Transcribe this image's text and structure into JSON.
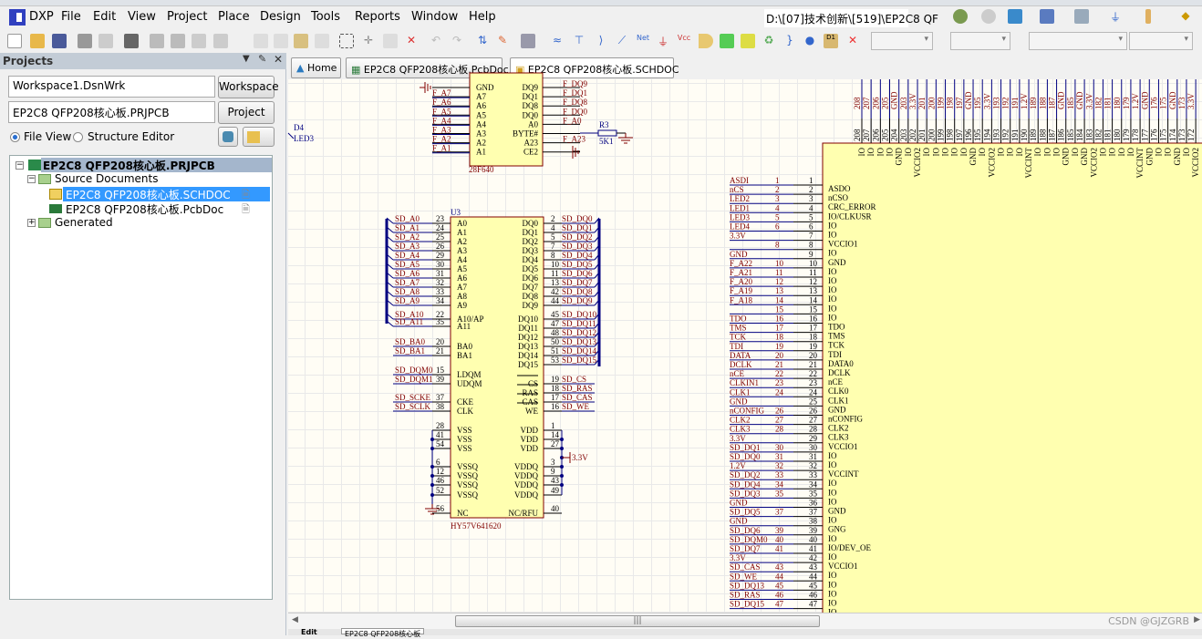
{
  "app": {
    "logo_text": "DXP",
    "path": "D:\\[07]技术创新\\[519]\\EP2C8 QF"
  },
  "menu": [
    "File",
    "Edit",
    "View",
    "Project",
    "Place",
    "Design",
    "Tools",
    "Reports",
    "Window",
    "Help"
  ],
  "projects_panel": {
    "title": "Projects",
    "workspace_value": "Workspace1.DsnWrk",
    "workspace_button": "Workspace",
    "project_value": "EP2C8 QFP208核心板.PRJPCB",
    "project_button": "Project",
    "view_options": [
      {
        "label": "File View",
        "selected": true
      },
      {
        "label": "Structure Editor",
        "selected": false
      }
    ],
    "tree": {
      "project": "EP2C8 QFP208核心板.PRJPCB",
      "source_folder": "Source Documents",
      "documents": [
        {
          "name": "EP2C8 QFP208核心板.SCHDOC",
          "selected": true
        },
        {
          "name": "EP2C8 QFP208核心板.PcbDoc",
          "selected": false
        }
      ],
      "generated_folder": "Generated"
    }
  },
  "tabs": [
    "Home",
    "EP2C8 QFP208核心板.PcbDoc",
    "EP2C8 QFP208核心板.SCHDOC"
  ],
  "watermark": "CSDN @GJZGRB",
  "bottom_tabs": [
    "Edit",
    "EP2C8 QFP208核心板"
  ],
  "colors": {
    "wire": "#000080",
    "net_label": "#800000",
    "component_fill": "#ffffb0",
    "component_border": "#800000",
    "selection": "#3399ff"
  },
  "schematic": {
    "d4": {
      "designator": "D4",
      "comment": "LED3"
    },
    "r3": {
      "designator": "R3",
      "value": "5K1"
    },
    "u2": {
      "comment": "28F640",
      "left": [
        [
          "GND",
          ""
        ],
        [
          "A7",
          "F_A7"
        ],
        [
          "A6",
          "F_A6"
        ],
        [
          "A5",
          "F_A5"
        ],
        [
          "A4",
          "F_A4"
        ],
        [
          "A3",
          "F_A3"
        ],
        [
          "A2",
          "F_A2"
        ],
        [
          "A1",
          "F_A1"
        ]
      ],
      "right": [
        [
          "DQ9",
          "F_DQ9"
        ],
        [
          "DQ1",
          "F_DQ1"
        ],
        [
          "DQ8",
          "F_DQ8"
        ],
        [
          "DQ0",
          "F_DQ0"
        ],
        [
          "A0",
          "F_A0"
        ],
        [
          "BYTE#",
          ""
        ],
        [
          "A23",
          "F_A23"
        ],
        [
          "CE2",
          ""
        ]
      ]
    },
    "u3": {
      "designator": "U3",
      "comment": "HY57V641620",
      "power_net": "3.3V",
      "left": [
        [
          "A0",
          "23",
          "SD_A0"
        ],
        [
          "A1",
          "24",
          "SD_A1"
        ],
        [
          "A2",
          "25",
          "SD_A2"
        ],
        [
          "A3",
          "26",
          "SD_A3"
        ],
        [
          "A4",
          "29",
          "SD_A4"
        ],
        [
          "A5",
          "30",
          "SD_A5"
        ],
        [
          "A6",
          "31",
          "SD_A6"
        ],
        [
          "A7",
          "32",
          "SD_A7"
        ],
        [
          "A8",
          "33",
          "SD_A8"
        ],
        [
          "A9",
          "34",
          "SD_A9"
        ],
        [
          "A10/AP",
          "22",
          "SD_A10"
        ],
        [
          "A11",
          "35",
          "SD_A11"
        ],
        [
          "BA0",
          "20",
          "SD_BA0"
        ],
        [
          "BA1",
          "21",
          "SD_BA1"
        ],
        [
          "LDQM",
          "15",
          "SD_DQM0"
        ],
        [
          "UDQM",
          "39",
          "SD_DQM1"
        ],
        [
          "CKE",
          "37",
          "SD_SCKE"
        ],
        [
          "CLK",
          "38",
          "SD_SCLK"
        ],
        [
          "VSS",
          "28",
          ""
        ],
        [
          "VSS",
          "41",
          ""
        ],
        [
          "VSS",
          "54",
          ""
        ],
        [
          "VSSQ",
          "6",
          ""
        ],
        [
          "VSSQ",
          "12",
          ""
        ],
        [
          "VSSQ",
          "46",
          ""
        ],
        [
          "VSSQ",
          "52",
          ""
        ],
        [
          "NC",
          "56",
          ""
        ]
      ],
      "right": [
        [
          "DQ0",
          "2",
          "SD_DQ0"
        ],
        [
          "DQ1",
          "4",
          "SD_DQ1"
        ],
        [
          "DQ2",
          "5",
          "SD_DQ2"
        ],
        [
          "DQ3",
          "7",
          "SD_DQ3"
        ],
        [
          "DQ4",
          "8",
          "SD_DQ4"
        ],
        [
          "DQ5",
          "10",
          "SD_DQ5"
        ],
        [
          "DQ6",
          "11",
          "SD_DQ6"
        ],
        [
          "DQ7",
          "13",
          "SD_DQ7"
        ],
        [
          "DQ8",
          "42",
          "SD_DQ8"
        ],
        [
          "DQ9",
          "44",
          "SD_DQ9"
        ],
        [
          "DQ10",
          "45",
          "SD_DQ10"
        ],
        [
          "DQ11",
          "47",
          "SD_DQ11"
        ],
        [
          "DQ12",
          "48",
          "SD_DQ12"
        ],
        [
          "DQ13",
          "50",
          "SD_DQ13"
        ],
        [
          "DQ14",
          "51",
          "SD_DQ14"
        ],
        [
          "DQ15",
          "53",
          "SD_DQ15"
        ],
        [
          "CS",
          "19",
          "SD_CS"
        ],
        [
          "RAS",
          "18",
          "SD_RAS"
        ],
        [
          "CAS",
          "17",
          "SD_CAS"
        ],
        [
          "WE",
          "16",
          "SD_WE"
        ],
        [
          "VDD",
          "1",
          ""
        ],
        [
          "VDD",
          "14",
          ""
        ],
        [
          "VDD",
          "27",
          ""
        ],
        [
          "VDDQ",
          "3",
          ""
        ],
        [
          "VDDQ",
          "9",
          ""
        ],
        [
          "VDDQ",
          "43",
          ""
        ],
        [
          "VDDQ",
          "49",
          ""
        ],
        [
          "NC/RFU",
          "40",
          ""
        ]
      ]
    },
    "fpga": {
      "left": [
        [
          "ASDI",
          "1",
          "1",
          "ASDO"
        ],
        [
          "nCS",
          "2",
          "2",
          "nCSO"
        ],
        [
          "LED2",
          "3",
          "3",
          "CRC_ERROR"
        ],
        [
          "LED1",
          "4",
          "4",
          "IO/CLKUSR"
        ],
        [
          "LED3",
          "5",
          "5",
          "IO"
        ],
        [
          "LED4",
          "6",
          "6",
          "IO"
        ],
        [
          "3.3V",
          "",
          "7",
          "VCCIO1"
        ],
        [
          "",
          "8",
          "8",
          "IO"
        ],
        [
          "GND",
          "",
          "9",
          "GND"
        ],
        [
          "F_A22",
          "10",
          "10",
          "IO"
        ],
        [
          "F_A21",
          "11",
          "11",
          "IO"
        ],
        [
          "F_A20",
          "12",
          "12",
          "IO"
        ],
        [
          "F_A19",
          "13",
          "13",
          "IO"
        ],
        [
          "F_A18",
          "14",
          "14",
          "IO"
        ],
        [
          "",
          "15",
          "15",
          "IO"
        ],
        [
          "TDO",
          "16",
          "16",
          "TDO"
        ],
        [
          "TMS",
          "17",
          "17",
          "TMS"
        ],
        [
          "TCK",
          "18",
          "18",
          "TCK"
        ],
        [
          "TDI",
          "19",
          "19",
          "TDI"
        ],
        [
          "DATA",
          "20",
          "20",
          "DATA0"
        ],
        [
          "DCLK",
          "21",
          "21",
          "DCLK"
        ],
        [
          "nCE",
          "22",
          "22",
          "nCE"
        ],
        [
          "CLKIN1",
          "23",
          "23",
          "CLK0"
        ],
        [
          "CLK1",
          "24",
          "24",
          "CLK1"
        ],
        [
          "GND",
          "",
          "25",
          "GND"
        ],
        [
          "nCONFIG",
          "26",
          "26",
          "nCONFIG"
        ],
        [
          "CLK2",
          "27",
          "27",
          "CLK2"
        ],
        [
          "CLK3",
          "28",
          "28",
          "CLK3"
        ],
        [
          "3.3V",
          "",
          "29",
          "VCCIO1"
        ],
        [
          "SD_DQ1",
          "30",
          "30",
          "IO"
        ],
        [
          "SD_DQ0",
          "31",
          "31",
          "IO"
        ],
        [
          "1.2V",
          "32",
          "32",
          "VCCINT"
        ],
        [
          "SD_DQ2",
          "33",
          "33",
          "IO"
        ],
        [
          "SD_DQ4",
          "34",
          "34",
          "IO"
        ],
        [
          "SD_DQ3",
          "35",
          "35",
          "IO"
        ],
        [
          "GND",
          "",
          "36",
          "GND"
        ],
        [
          "SD_DQ5",
          "37",
          "37",
          "IO"
        ],
        [
          "GND",
          "",
          "38",
          "GNG"
        ],
        [
          "SD_DQ6",
          "39",
          "39",
          "IO"
        ],
        [
          "SD_DQM0",
          "40",
          "40",
          "IO/DEV_OE"
        ],
        [
          "SD_DQ7",
          "41",
          "41",
          "IO"
        ],
        [
          "3.3V",
          "",
          "42",
          "VCCIO1"
        ],
        [
          "SD_CAS",
          "43",
          "43",
          "IO"
        ],
        [
          "SD_WE",
          "44",
          "44",
          "IO"
        ],
        [
          "SD_DQ13",
          "45",
          "45",
          "IO"
        ],
        [
          "SD_RAS",
          "46",
          "46",
          "IO"
        ],
        [
          "SD_DQ15",
          "47",
          "47",
          "IO"
        ]
      ],
      "top": [
        [
          "208",
          "208",
          "IO"
        ],
        [
          "207",
          "207",
          "IO"
        ],
        [
          "206",
          "206",
          "IO"
        ],
        [
          "205",
          "205",
          "IO"
        ],
        [
          "GND",
          "204",
          "GND"
        ],
        [
          "203",
          "203",
          "IO"
        ],
        [
          "3.3V",
          "202",
          "VCCIO2"
        ],
        [
          "201",
          "201",
          "IO"
        ],
        [
          "200",
          "200",
          "IO"
        ],
        [
          "199",
          "199",
          "IO"
        ],
        [
          "198",
          "198",
          "IO"
        ],
        [
          "197",
          "197",
          "IO"
        ],
        [
          "GND",
          "196",
          "GND"
        ],
        [
          "195",
          "195",
          "IO"
        ],
        [
          "3.3V",
          "194",
          "VCCIO2"
        ],
        [
          "193",
          "193",
          "IO"
        ],
        [
          "192",
          "192",
          "IO"
        ],
        [
          "191",
          "191",
          "IO"
        ],
        [
          "1.2V",
          "190",
          "VCCINT"
        ],
        [
          "189",
          "189",
          "IO"
        ],
        [
          "188",
          "188",
          "IO"
        ],
        [
          "187",
          "187",
          "IO"
        ],
        [
          "GND",
          "186",
          "GND"
        ],
        [
          "185",
          "185",
          "IO"
        ],
        [
          "GND",
          "184",
          "GND"
        ],
        [
          "3.3V",
          "183",
          "VCCIO2"
        ],
        [
          "182",
          "182",
          "IO"
        ],
        [
          "181",
          "181",
          "IO"
        ],
        [
          "180",
          "180",
          "IO"
        ],
        [
          "179",
          "179",
          "IO"
        ],
        [
          "1.2V",
          "178",
          "VCCINT"
        ],
        [
          "GND",
          "177",
          "GND"
        ],
        [
          "176",
          "176",
          "IO"
        ],
        [
          "175",
          "175",
          "IO"
        ],
        [
          "GND",
          "174",
          "GND"
        ],
        [
          "173",
          "173",
          "IO"
        ],
        [
          "3.3V",
          "172",
          "VCCIO2"
        ]
      ]
    }
  }
}
